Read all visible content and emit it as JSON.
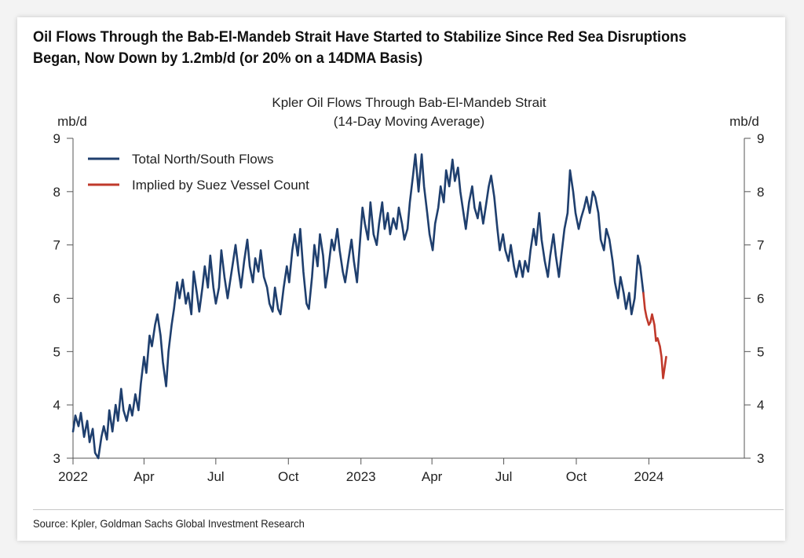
{
  "headline": "Oil Flows Through the Bab-El-Mandeb Strait Have Started to Stabilize Since Red Sea Disruptions\nBegan, Now Down by 1.2mb/d (or 20% on a 14DMA Basis)",
  "source": "Source: Kpler, Goldman Sachs Global Investment Research",
  "chart_data": {
    "type": "line",
    "title": "Kpler Oil Flows Through Bab-El-Mandeb Strait",
    "subtitle": "(14-Day Moving Average)",
    "ylabel_left": "mb/d",
    "ylabel_right": "mb/d",
    "ylim": [
      3,
      9
    ],
    "yticks": [
      "3",
      "4",
      "5",
      "6",
      "7",
      "8",
      "9"
    ],
    "xlim": [
      "2022-01-01",
      "2024-05-01"
    ],
    "xticks": [
      {
        "date": "2022-01-01",
        "label": "2022"
      },
      {
        "date": "2022-04-01",
        "label": "Apr"
      },
      {
        "date": "2022-07-01",
        "label": "Jul"
      },
      {
        "date": "2022-10-01",
        "label": "Oct"
      },
      {
        "date": "2023-01-01",
        "label": "2023"
      },
      {
        "date": "2023-04-01",
        "label": "Apr"
      },
      {
        "date": "2023-07-01",
        "label": "Jul"
      },
      {
        "date": "2023-10-01",
        "label": "Oct"
      },
      {
        "date": "2024-01-01",
        "label": "2024"
      }
    ],
    "grid": false,
    "legend_position": "top-left",
    "series": [
      {
        "name": "Total North/South Flows",
        "color": "#1f3f6e",
        "points": [
          [
            "2022-01-01",
            3.5
          ],
          [
            "2022-01-04",
            3.8
          ],
          [
            "2022-01-08",
            3.6
          ],
          [
            "2022-01-11",
            3.85
          ],
          [
            "2022-01-15",
            3.4
          ],
          [
            "2022-01-19",
            3.7
          ],
          [
            "2022-01-22",
            3.3
          ],
          [
            "2022-01-26",
            3.55
          ],
          [
            "2022-01-29",
            3.1
          ],
          [
            "2022-02-02",
            3.0
          ],
          [
            "2022-02-06",
            3.4
          ],
          [
            "2022-02-09",
            3.6
          ],
          [
            "2022-02-13",
            3.35
          ],
          [
            "2022-02-16",
            3.9
          ],
          [
            "2022-02-20",
            3.5
          ],
          [
            "2022-02-24",
            4.0
          ],
          [
            "2022-02-27",
            3.7
          ],
          [
            "2022-03-03",
            4.3
          ],
          [
            "2022-03-06",
            3.9
          ],
          [
            "2022-03-10",
            3.7
          ],
          [
            "2022-03-14",
            4.0
          ],
          [
            "2022-03-17",
            3.8
          ],
          [
            "2022-03-21",
            4.2
          ],
          [
            "2022-03-25",
            3.9
          ],
          [
            "2022-03-28",
            4.4
          ],
          [
            "2022-04-01",
            4.9
          ],
          [
            "2022-04-04",
            4.6
          ],
          [
            "2022-04-08",
            5.3
          ],
          [
            "2022-04-11",
            5.1
          ],
          [
            "2022-04-15",
            5.5
          ],
          [
            "2022-04-18",
            5.7
          ],
          [
            "2022-04-22",
            5.3
          ],
          [
            "2022-04-25",
            4.8
          ],
          [
            "2022-04-29",
            4.35
          ],
          [
            "2022-05-02",
            5.0
          ],
          [
            "2022-05-06",
            5.5
          ],
          [
            "2022-05-09",
            5.8
          ],
          [
            "2022-05-13",
            6.3
          ],
          [
            "2022-05-16",
            6.0
          ],
          [
            "2022-05-20",
            6.35
          ],
          [
            "2022-05-24",
            5.9
          ],
          [
            "2022-05-27",
            6.1
          ],
          [
            "2022-05-31",
            5.7
          ],
          [
            "2022-06-03",
            6.5
          ],
          [
            "2022-06-07",
            6.1
          ],
          [
            "2022-06-10",
            5.75
          ],
          [
            "2022-06-14",
            6.2
          ],
          [
            "2022-06-17",
            6.6
          ],
          [
            "2022-06-21",
            6.2
          ],
          [
            "2022-06-24",
            6.8
          ],
          [
            "2022-06-28",
            6.2
          ],
          [
            "2022-07-01",
            5.9
          ],
          [
            "2022-07-05",
            6.2
          ],
          [
            "2022-07-08",
            6.9
          ],
          [
            "2022-07-12",
            6.4
          ],
          [
            "2022-07-16",
            6.0
          ],
          [
            "2022-07-19",
            6.3
          ],
          [
            "2022-07-23",
            6.7
          ],
          [
            "2022-07-26",
            7.0
          ],
          [
            "2022-07-30",
            6.5
          ],
          [
            "2022-08-02",
            6.2
          ],
          [
            "2022-08-06",
            6.7
          ],
          [
            "2022-08-10",
            7.1
          ],
          [
            "2022-08-13",
            6.6
          ],
          [
            "2022-08-17",
            6.3
          ],
          [
            "2022-08-20",
            6.75
          ],
          [
            "2022-08-24",
            6.5
          ],
          [
            "2022-08-27",
            6.9
          ],
          [
            "2022-08-31",
            6.4
          ],
          [
            "2022-09-04",
            6.2
          ],
          [
            "2022-09-07",
            5.9
          ],
          [
            "2022-09-11",
            5.75
          ],
          [
            "2022-09-14",
            6.2
          ],
          [
            "2022-09-18",
            5.8
          ],
          [
            "2022-09-21",
            5.7
          ],
          [
            "2022-09-25",
            6.2
          ],
          [
            "2022-09-29",
            6.6
          ],
          [
            "2022-10-02",
            6.3
          ],
          [
            "2022-10-06",
            6.9
          ],
          [
            "2022-10-09",
            7.2
          ],
          [
            "2022-10-13",
            6.8
          ],
          [
            "2022-10-16",
            7.3
          ],
          [
            "2022-10-20",
            6.5
          ],
          [
            "2022-10-24",
            5.9
          ],
          [
            "2022-10-27",
            5.8
          ],
          [
            "2022-10-31",
            6.4
          ],
          [
            "2022-11-03",
            7.0
          ],
          [
            "2022-11-07",
            6.6
          ],
          [
            "2022-11-10",
            7.2
          ],
          [
            "2022-11-14",
            6.8
          ],
          [
            "2022-11-17",
            6.2
          ],
          [
            "2022-11-21",
            6.6
          ],
          [
            "2022-11-25",
            7.1
          ],
          [
            "2022-11-28",
            6.9
          ],
          [
            "2022-12-02",
            7.3
          ],
          [
            "2022-12-05",
            6.9
          ],
          [
            "2022-12-09",
            6.5
          ],
          [
            "2022-12-12",
            6.3
          ],
          [
            "2022-12-16",
            6.7
          ],
          [
            "2022-12-20",
            7.1
          ],
          [
            "2022-12-23",
            6.7
          ],
          [
            "2022-12-27",
            6.3
          ],
          [
            "2022-12-30",
            6.9
          ],
          [
            "2023-01-03",
            7.7
          ],
          [
            "2023-01-06",
            7.4
          ],
          [
            "2023-01-10",
            7.1
          ],
          [
            "2023-01-13",
            7.8
          ],
          [
            "2023-01-17",
            7.2
          ],
          [
            "2023-01-21",
            7.0
          ],
          [
            "2023-01-24",
            7.4
          ],
          [
            "2023-01-28",
            7.8
          ],
          [
            "2023-01-31",
            7.3
          ],
          [
            "2023-02-04",
            7.6
          ],
          [
            "2023-02-07",
            7.2
          ],
          [
            "2023-02-11",
            7.5
          ],
          [
            "2023-02-15",
            7.3
          ],
          [
            "2023-02-18",
            7.7
          ],
          [
            "2023-02-22",
            7.4
          ],
          [
            "2023-02-25",
            7.1
          ],
          [
            "2023-03-01",
            7.3
          ],
          [
            "2023-03-04",
            7.8
          ],
          [
            "2023-03-08",
            8.3
          ],
          [
            "2023-03-11",
            8.7
          ],
          [
            "2023-03-15",
            8.0
          ],
          [
            "2023-03-19",
            8.7
          ],
          [
            "2023-03-22",
            8.1
          ],
          [
            "2023-03-26",
            7.6
          ],
          [
            "2023-03-29",
            7.2
          ],
          [
            "2023-04-02",
            6.9
          ],
          [
            "2023-04-05",
            7.4
          ],
          [
            "2023-04-09",
            7.7
          ],
          [
            "2023-04-12",
            8.1
          ],
          [
            "2023-04-16",
            7.8
          ],
          [
            "2023-04-19",
            8.4
          ],
          [
            "2023-04-23",
            8.1
          ],
          [
            "2023-04-27",
            8.6
          ],
          [
            "2023-04-30",
            8.2
          ],
          [
            "2023-05-04",
            8.45
          ],
          [
            "2023-05-07",
            8.0
          ],
          [
            "2023-05-11",
            7.6
          ],
          [
            "2023-05-14",
            7.3
          ],
          [
            "2023-05-18",
            7.8
          ],
          [
            "2023-05-22",
            8.1
          ],
          [
            "2023-05-25",
            7.7
          ],
          [
            "2023-05-29",
            7.5
          ],
          [
            "2023-06-01",
            7.8
          ],
          [
            "2023-06-05",
            7.4
          ],
          [
            "2023-06-08",
            7.7
          ],
          [
            "2023-06-12",
            8.1
          ],
          [
            "2023-06-15",
            8.3
          ],
          [
            "2023-06-19",
            7.9
          ],
          [
            "2023-06-23",
            7.3
          ],
          [
            "2023-06-26",
            6.9
          ],
          [
            "2023-06-30",
            7.2
          ],
          [
            "2023-07-03",
            6.9
          ],
          [
            "2023-07-07",
            6.7
          ],
          [
            "2023-07-10",
            7.0
          ],
          [
            "2023-07-14",
            6.6
          ],
          [
            "2023-07-17",
            6.4
          ],
          [
            "2023-07-21",
            6.7
          ],
          [
            "2023-07-25",
            6.4
          ],
          [
            "2023-07-28",
            6.7
          ],
          [
            "2023-08-01",
            6.5
          ],
          [
            "2023-08-04",
            6.9
          ],
          [
            "2023-08-08",
            7.3
          ],
          [
            "2023-08-11",
            7.0
          ],
          [
            "2023-08-15",
            7.6
          ],
          [
            "2023-08-18",
            7.1
          ],
          [
            "2023-08-22",
            6.7
          ],
          [
            "2023-08-26",
            6.4
          ],
          [
            "2023-08-29",
            6.8
          ],
          [
            "2023-09-02",
            7.2
          ],
          [
            "2023-09-05",
            6.8
          ],
          [
            "2023-09-09",
            6.4
          ],
          [
            "2023-09-12",
            6.8
          ],
          [
            "2023-09-16",
            7.3
          ],
          [
            "2023-09-20",
            7.6
          ],
          [
            "2023-09-23",
            8.4
          ],
          [
            "2023-09-27",
            8.0
          ],
          [
            "2023-09-30",
            7.6
          ],
          [
            "2023-10-04",
            7.3
          ],
          [
            "2023-10-07",
            7.5
          ],
          [
            "2023-10-11",
            7.7
          ],
          [
            "2023-10-14",
            7.9
          ],
          [
            "2023-10-18",
            7.6
          ],
          [
            "2023-10-22",
            8.0
          ],
          [
            "2023-10-25",
            7.9
          ],
          [
            "2023-10-29",
            7.6
          ],
          [
            "2023-11-01",
            7.1
          ],
          [
            "2023-11-05",
            6.9
          ],
          [
            "2023-11-08",
            7.3
          ],
          [
            "2023-11-12",
            7.1
          ],
          [
            "2023-11-16",
            6.7
          ],
          [
            "2023-11-19",
            6.3
          ],
          [
            "2023-11-23",
            6.0
          ],
          [
            "2023-11-26",
            6.4
          ],
          [
            "2023-11-30",
            6.1
          ],
          [
            "2023-12-03",
            5.8
          ],
          [
            "2023-12-07",
            6.1
          ],
          [
            "2023-12-10",
            5.7
          ],
          [
            "2023-12-14",
            6.0
          ],
          [
            "2023-12-18",
            6.8
          ],
          [
            "2023-12-21",
            6.6
          ],
          [
            "2023-12-25",
            6.1
          ]
        ]
      },
      {
        "name": "Implied by Suez Vessel Count",
        "color": "#c0392b",
        "points": [
          [
            "2023-12-25",
            6.1
          ],
          [
            "2023-12-27",
            5.8
          ],
          [
            "2023-12-29",
            5.65
          ],
          [
            "2024-01-01",
            5.5
          ],
          [
            "2024-01-03",
            5.55
          ],
          [
            "2024-01-05",
            5.7
          ],
          [
            "2024-01-08",
            5.5
          ],
          [
            "2024-01-10",
            5.2
          ],
          [
            "2024-01-12",
            5.25
          ],
          [
            "2024-01-15",
            5.1
          ],
          [
            "2024-01-17",
            4.9
          ],
          [
            "2024-01-19",
            4.5
          ],
          [
            "2024-01-21",
            4.7
          ],
          [
            "2024-01-23",
            4.9
          ]
        ]
      }
    ]
  }
}
